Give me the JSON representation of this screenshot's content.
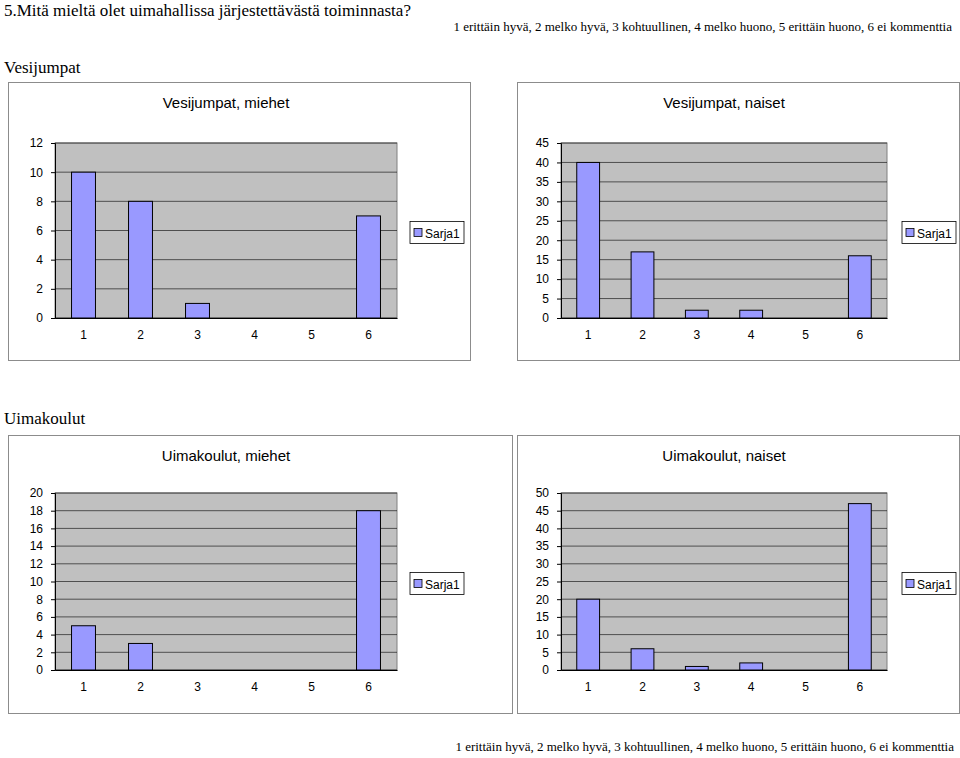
{
  "title": "5.Mitä mieltä olet uimahallissa järjestettävästä toiminnasta?",
  "scale_note": "1 erittäin hyvä, 2 melko hyvä, 3 kohtuullinen, 4 melko huono, 5 erittäin huono, 6 ei kommenttia",
  "sections": [
    "Vesijumpat",
    "Uimakoulut"
  ],
  "footer_note": "1 erittäin hyvä, 2 melko hyvä, 3 kohtuullinen, 4 melko huono, 5 erittäin huono, 6 ei kommenttia",
  "chart_data": [
    {
      "type": "bar",
      "title": "Vesijumpat, miehet",
      "categories": [
        "1",
        "2",
        "3",
        "4",
        "5",
        "6"
      ],
      "series": [
        {
          "name": "Sarja1",
          "color": "#9999ff",
          "values": [
            10,
            8,
            1,
            0,
            0,
            7
          ]
        }
      ],
      "ylim": [
        0,
        12
      ],
      "yticks": [
        0,
        2,
        4,
        6,
        8,
        10,
        12
      ],
      "grid": true,
      "legend": "right"
    },
    {
      "type": "bar",
      "title": "Vesijumpat, naiset",
      "categories": [
        "1",
        "2",
        "3",
        "4",
        "5",
        "6"
      ],
      "series": [
        {
          "name": "Sarja1",
          "color": "#9999ff",
          "values": [
            40,
            17,
            2,
            2,
            0,
            16
          ]
        }
      ],
      "ylim": [
        0,
        45
      ],
      "yticks": [
        0,
        5,
        10,
        15,
        20,
        25,
        30,
        35,
        40,
        45
      ],
      "grid": true,
      "legend": "right"
    },
    {
      "type": "bar",
      "title": "Uimakoulut, miehet",
      "categories": [
        "1",
        "2",
        "3",
        "4",
        "5",
        "6"
      ],
      "series": [
        {
          "name": "Sarja1",
          "color": "#9999ff",
          "values": [
            5,
            3,
            0,
            0,
            0,
            18
          ]
        }
      ],
      "ylim": [
        0,
        20
      ],
      "yticks": [
        0,
        2,
        4,
        6,
        8,
        10,
        12,
        14,
        16,
        18,
        20
      ],
      "grid": true,
      "legend": "right"
    },
    {
      "type": "bar",
      "title": "Uimakoulut, naiset",
      "categories": [
        "1",
        "2",
        "3",
        "4",
        "5",
        "6"
      ],
      "series": [
        {
          "name": "Sarja1",
          "color": "#9999ff",
          "values": [
            20,
            6,
            1,
            2,
            0,
            47
          ]
        }
      ],
      "ylim": [
        0,
        50
      ],
      "yticks": [
        0,
        5,
        10,
        15,
        20,
        25,
        30,
        35,
        40,
        45,
        50
      ],
      "grid": true,
      "legend": "right"
    }
  ]
}
